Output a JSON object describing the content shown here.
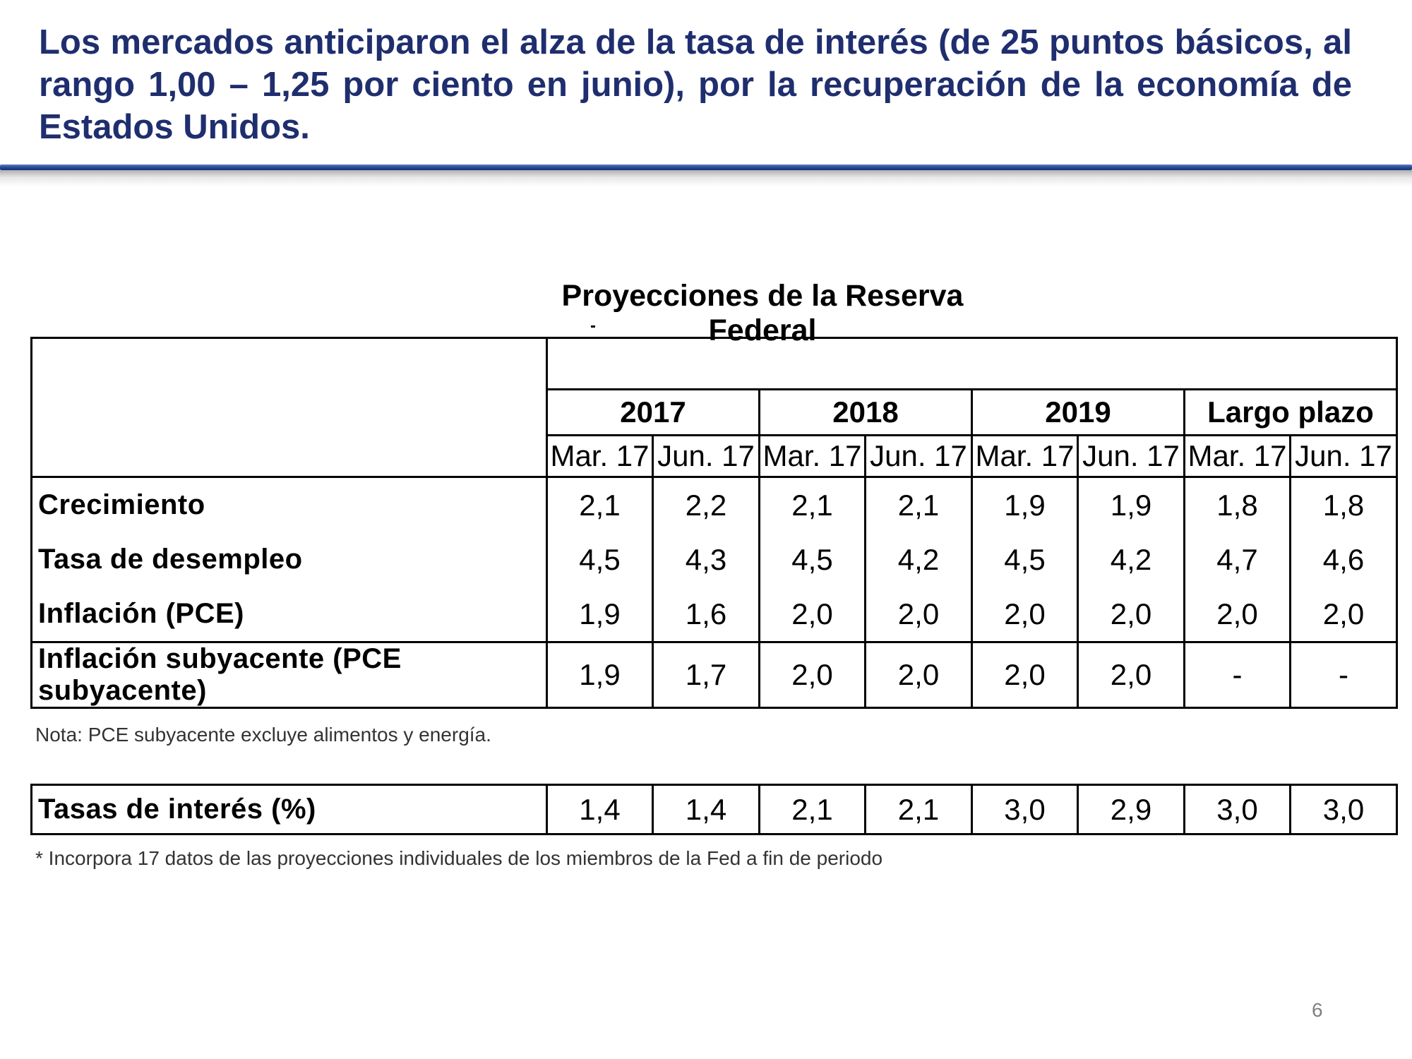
{
  "headline": "Los mercados anticiparon el alza de la tasa de interés (de 25 puntos básicos, al rango 1,00 – 1,25 por ciento en junio), por la recuperación de la economía de Estados Unidos.",
  "table_title": "Proyecciones de la Reserva Federal",
  "years": [
    "2017",
    "2018",
    "2019",
    "Largo plazo"
  ],
  "dates": [
    "Mar. 17",
    "Jun. 17",
    "Mar. 17",
    "Jun. 17",
    "Mar. 17",
    "Jun. 17",
    "Mar. 17",
    "Jun. 17"
  ],
  "rows": [
    {
      "label": "Crecimiento",
      "values": [
        "2,1",
        "2,2",
        "2,1",
        "2,1",
        "1,9",
        "1,9",
        "1,8",
        "1,8"
      ]
    },
    {
      "label": "Tasa de desempleo",
      "values": [
        "4,5",
        "4,3",
        "4,5",
        "4,2",
        "4,5",
        "4,2",
        "4,7",
        "4,6"
      ]
    },
    {
      "label": "Inflación (PCE)",
      "values": [
        "1,9",
        "1,6",
        "2,0",
        "2,0",
        "2,0",
        "2,0",
        "2,0",
        "2,0"
      ]
    },
    {
      "label": "Inflación subyacente (PCE subyacente)",
      "values": [
        "1,9",
        "1,7",
        "2,0",
        "2,0",
        "2,0",
        "2,0",
        "-",
        "-"
      ]
    }
  ],
  "note": "Nota: PCE subyacente excluye alimentos y energía.",
  "rates_row": {
    "label": "Tasas de interés (%)",
    "values": [
      "1,4",
      "1,4",
      "2,1",
      "2,1",
      "3,0",
      "2,9",
      "3,0",
      "3,0"
    ]
  },
  "footnote": "* Incorpora 17 datos de las proyecciones individuales de los miembros de la Fed a fin de periodo",
  "page_number": "6"
}
